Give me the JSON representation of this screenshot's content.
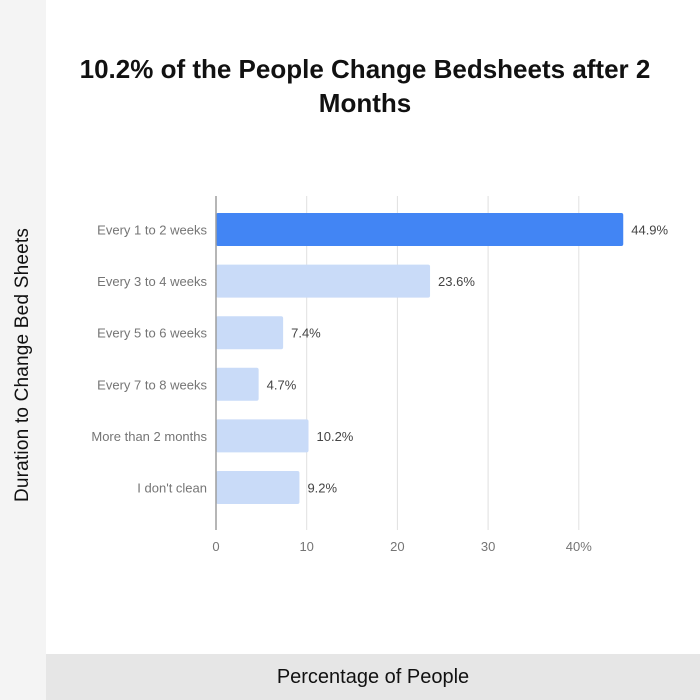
{
  "title": "10.2% of the People Change Bedsheets after 2 Months",
  "chart_data": {
    "type": "bar",
    "orientation": "horizontal",
    "title": "10.2% of the People Change Bedsheets after 2 Months",
    "xlabel": "Percentage of People",
    "ylabel": "Duration to Change Bed Sheets",
    "categories": [
      "Every 1 to 2 weeks",
      "Every 3 to 4 weeks",
      "Every 5 to 6 weeks",
      "Every 7 to 8 weeks",
      "More than 2 months",
      "I don't clean"
    ],
    "values": [
      44.9,
      23.6,
      7.4,
      4.7,
      10.2,
      9.2
    ],
    "data_labels": [
      "44.9%",
      "23.6%",
      "7.4%",
      "4.7%",
      "10.2%",
      "9.2%"
    ],
    "xlim": [
      0,
      45
    ],
    "x_ticks": [
      0,
      10,
      20,
      30,
      40
    ],
    "x_tick_labels": [
      "0",
      "10",
      "20",
      "30",
      "40%"
    ],
    "grid": true,
    "legend": "none",
    "colors": {
      "highlight": "#4285f4",
      "bar": "#c9dbf8",
      "grid": "#e0e0e0",
      "axis": "#9e9e9e",
      "label": "#757575",
      "value": "#444444"
    }
  }
}
